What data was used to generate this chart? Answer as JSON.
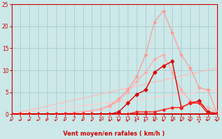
{
  "xlabel": "Vent moyen/en rafales ( km/h )",
  "background_color": "#cce8e8",
  "grid_color": "#aacccc",
  "text_color": "#cc0000",
  "xlim": [
    0,
    23
  ],
  "ylim": [
    0,
    25
  ],
  "yticks": [
    0,
    5,
    10,
    15,
    20,
    25
  ],
  "xticks": [
    0,
    1,
    2,
    3,
    4,
    5,
    6,
    7,
    8,
    9,
    10,
    11,
    12,
    13,
    14,
    15,
    16,
    17,
    18,
    19,
    20,
    21,
    22,
    23
  ],
  "lines": [
    {
      "x": [
        0,
        1,
        2,
        3,
        4,
        5,
        6,
        7,
        8,
        9,
        10,
        11,
        12,
        13,
        14,
        15,
        16,
        17,
        18,
        19,
        20,
        21,
        22,
        23
      ],
      "y": [
        0,
        0,
        0,
        0,
        0,
        0,
        0.2,
        0.3,
        0.5,
        0.8,
        1.2,
        2.0,
        3.5,
        5.5,
        8.5,
        13.5,
        21.0,
        23.5,
        18.5,
        13.5,
        10.5,
        6.0,
        5.5,
        0.2
      ],
      "color": "#ff9999",
      "lw": 0.9,
      "ms": 2.0
    },
    {
      "x": [
        0,
        1,
        2,
        3,
        4,
        5,
        6,
        7,
        8,
        9,
        10,
        11,
        12,
        13,
        14,
        15,
        16,
        17,
        18,
        19,
        20,
        21,
        22,
        23
      ],
      "y": [
        0,
        0,
        0,
        0,
        0,
        0.1,
        0.2,
        0.3,
        0.5,
        0.8,
        1.2,
        1.8,
        3.0,
        5.0,
        7.5,
        9.5,
        12.5,
        13.5,
        9.5,
        5.5,
        3.0,
        2.5,
        1.5,
        0.5
      ],
      "color": "#ffaaaa",
      "lw": 0.9,
      "ms": 2.0
    },
    {
      "x": [
        0,
        23
      ],
      "y": [
        0,
        10.5
      ],
      "color": "#ffbbbb",
      "lw": 0.9,
      "ms": 0
    },
    {
      "x": [
        0,
        23
      ],
      "y": [
        0,
        5.5
      ],
      "color": "#ffcccc",
      "lw": 0.9,
      "ms": 0
    },
    {
      "x": [
        0,
        1,
        2,
        3,
        4,
        5,
        6,
        7,
        8,
        9,
        10,
        11,
        12,
        13,
        14,
        15,
        16,
        17,
        18,
        19,
        20,
        21,
        22,
        23
      ],
      "y": [
        0,
        0,
        0,
        0,
        0,
        0,
        0,
        0,
        0,
        0,
        0,
        0,
        0.5,
        2.5,
        4.5,
        5.5,
        9.5,
        11.0,
        12.0,
        1.5,
        2.5,
        3.0,
        0.5,
        0.2
      ],
      "color": "#dd0000",
      "lw": 1.0,
      "ms": 2.5
    },
    {
      "x": [
        0,
        1,
        2,
        3,
        4,
        5,
        6,
        7,
        8,
        9,
        10,
        11,
        12,
        13,
        14,
        15,
        16,
        17,
        18,
        19,
        20,
        21,
        22,
        23
      ],
      "y": [
        0,
        0,
        0,
        0,
        0,
        0,
        0,
        0,
        0,
        0,
        0,
        0,
        0,
        0,
        0.5,
        0.5,
        0.5,
        1.0,
        1.5,
        1.5,
        2.5,
        2.5,
        0,
        0.2
      ],
      "color": "#ff2222",
      "lw": 1.0,
      "ms": 2.0
    }
  ],
  "arrow_angles_deg": [
    135,
    135,
    135,
    135,
    135,
    135,
    135,
    135,
    135,
    120,
    120,
    100,
    80,
    60,
    45,
    45,
    90,
    90,
    90,
    90,
    90,
    0,
    135,
    90
  ]
}
